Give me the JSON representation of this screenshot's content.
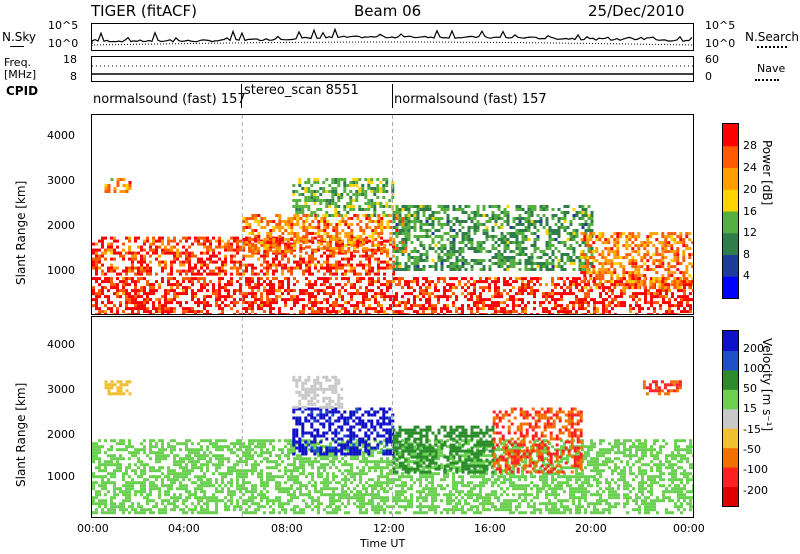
{
  "header": {
    "left": "TIGER (fitACF)",
    "center": "Beam 06",
    "right": "25/Dec/2010"
  },
  "noise_panel": {
    "left_label": "N.Sky",
    "right_label": "N.Search",
    "left_ticks": [
      "10^5",
      "10^0"
    ],
    "right_ticks": [
      "10^5",
      "10^0"
    ]
  },
  "freq_panel": {
    "left_label_1": "Freq.",
    "left_label_2": "[MHz]",
    "right_label": "Nave",
    "left_ticks": [
      "18",
      "8"
    ],
    "right_ticks": [
      "60",
      "0"
    ]
  },
  "cpid": {
    "label": "CPID",
    "segments": [
      {
        "text": "normalsound (fast) 157",
        "start_hour": 0
      },
      {
        "text": "stereo_scan 8551",
        "start_hour": 6
      },
      {
        "text": "normalsound (fast) 157",
        "start_hour": 12
      }
    ]
  },
  "power_panel": {
    "ylabel": "Slant Range [km]",
    "yticks": [
      "1000",
      "2000",
      "3000",
      "4000"
    ],
    "colorbar_label": "Power [dB]",
    "colorbar_ticks": [
      "28",
      "24",
      "20",
      "16",
      "12",
      "8",
      "4"
    ]
  },
  "velocity_panel": {
    "ylabel": "Slant Range [km]",
    "yticks": [
      "1000",
      "2000",
      "3000",
      "4000"
    ],
    "colorbar_label": "Velocity [m s⁻¹]",
    "colorbar_ticks": [
      "200",
      "100",
      "50",
      "15",
      "-15",
      "-50",
      "-100",
      "-200"
    ]
  },
  "xaxis": {
    "label": "Time UT",
    "ticks": [
      "00:00",
      "04:00",
      "08:00",
      "12:00",
      "16:00",
      "20:00",
      "00:00"
    ]
  },
  "colors": {
    "power_scale": [
      "#0000ff",
      "#1e3c9a",
      "#2f7d4a",
      "#55b040",
      "#ffd200",
      "#ff9c00",
      "#ff5a00",
      "#ff0000"
    ],
    "velocity_scale": [
      "#1010c8",
      "#1e50c8",
      "#2a8c2a",
      "#6ad050",
      "#c8c8c8",
      "#f0c030",
      "#f07000",
      "#ff2020",
      "#e00000"
    ]
  },
  "chart_data": [
    {
      "type": "heatmap",
      "title": "Power",
      "xlabel": "Time UT",
      "ylabel": "Slant Range [km]",
      "xlim": [
        0,
        24
      ],
      "ylim": [
        180,
        4600
      ],
      "colorbar": {
        "label": "Power [dB]",
        "range": [
          0,
          32
        ]
      },
      "regions": [
        {
          "t0": 0.0,
          "t1": 24.0,
          "r0": 200,
          "r1": 1000,
          "value": 30
        },
        {
          "t0": 0.0,
          "t1": 12.0,
          "r0": 1100,
          "r1": 1900,
          "value": 28
        },
        {
          "t0": 6.0,
          "t1": 12.5,
          "r0": 1600,
          "r1": 2400,
          "value": 24
        },
        {
          "t0": 8.0,
          "t1": 12.0,
          "r0": 2400,
          "r1": 3200,
          "value": 14
        },
        {
          "t0": 12.0,
          "t1": 20.0,
          "r0": 1200,
          "r1": 2600,
          "value": 12
        },
        {
          "t0": 19.5,
          "t1": 24.0,
          "r0": 800,
          "r1": 2000,
          "value": 24
        },
        {
          "t0": 0.5,
          "t1": 1.5,
          "r0": 2900,
          "r1": 3200,
          "value": 22
        }
      ]
    },
    {
      "type": "heatmap",
      "title": "Velocity",
      "xlabel": "Time UT",
      "ylabel": "Slant Range [km]",
      "xlim": [
        0,
        24
      ],
      "ylim": [
        180,
        4600
      ],
      "colorbar": {
        "label": "Velocity [m s⁻¹]",
        "range": [
          -250,
          250
        ]
      },
      "regions": [
        {
          "t0": 0.0,
          "t1": 24.0,
          "r0": 300,
          "r1": 1900,
          "value": 0
        },
        {
          "t0": 8.0,
          "t1": 12.0,
          "r0": 1600,
          "r1": 2600,
          "value": 120
        },
        {
          "t0": 12.0,
          "t1": 16.0,
          "r0": 1200,
          "r1": 2200,
          "value": 40
        },
        {
          "t0": 16.0,
          "t1": 19.5,
          "r0": 1200,
          "r1": 2600,
          "value": -200
        },
        {
          "t0": 8.0,
          "t1": 10.0,
          "r0": 2600,
          "r1": 3300,
          "value": -40
        },
        {
          "t0": 22.0,
          "t1": 23.5,
          "r0": 2900,
          "r1": 3200,
          "value": -200
        },
        {
          "t0": 0.5,
          "t1": 1.5,
          "r0": 2900,
          "r1": 3200,
          "value": -80
        }
      ]
    }
  ]
}
